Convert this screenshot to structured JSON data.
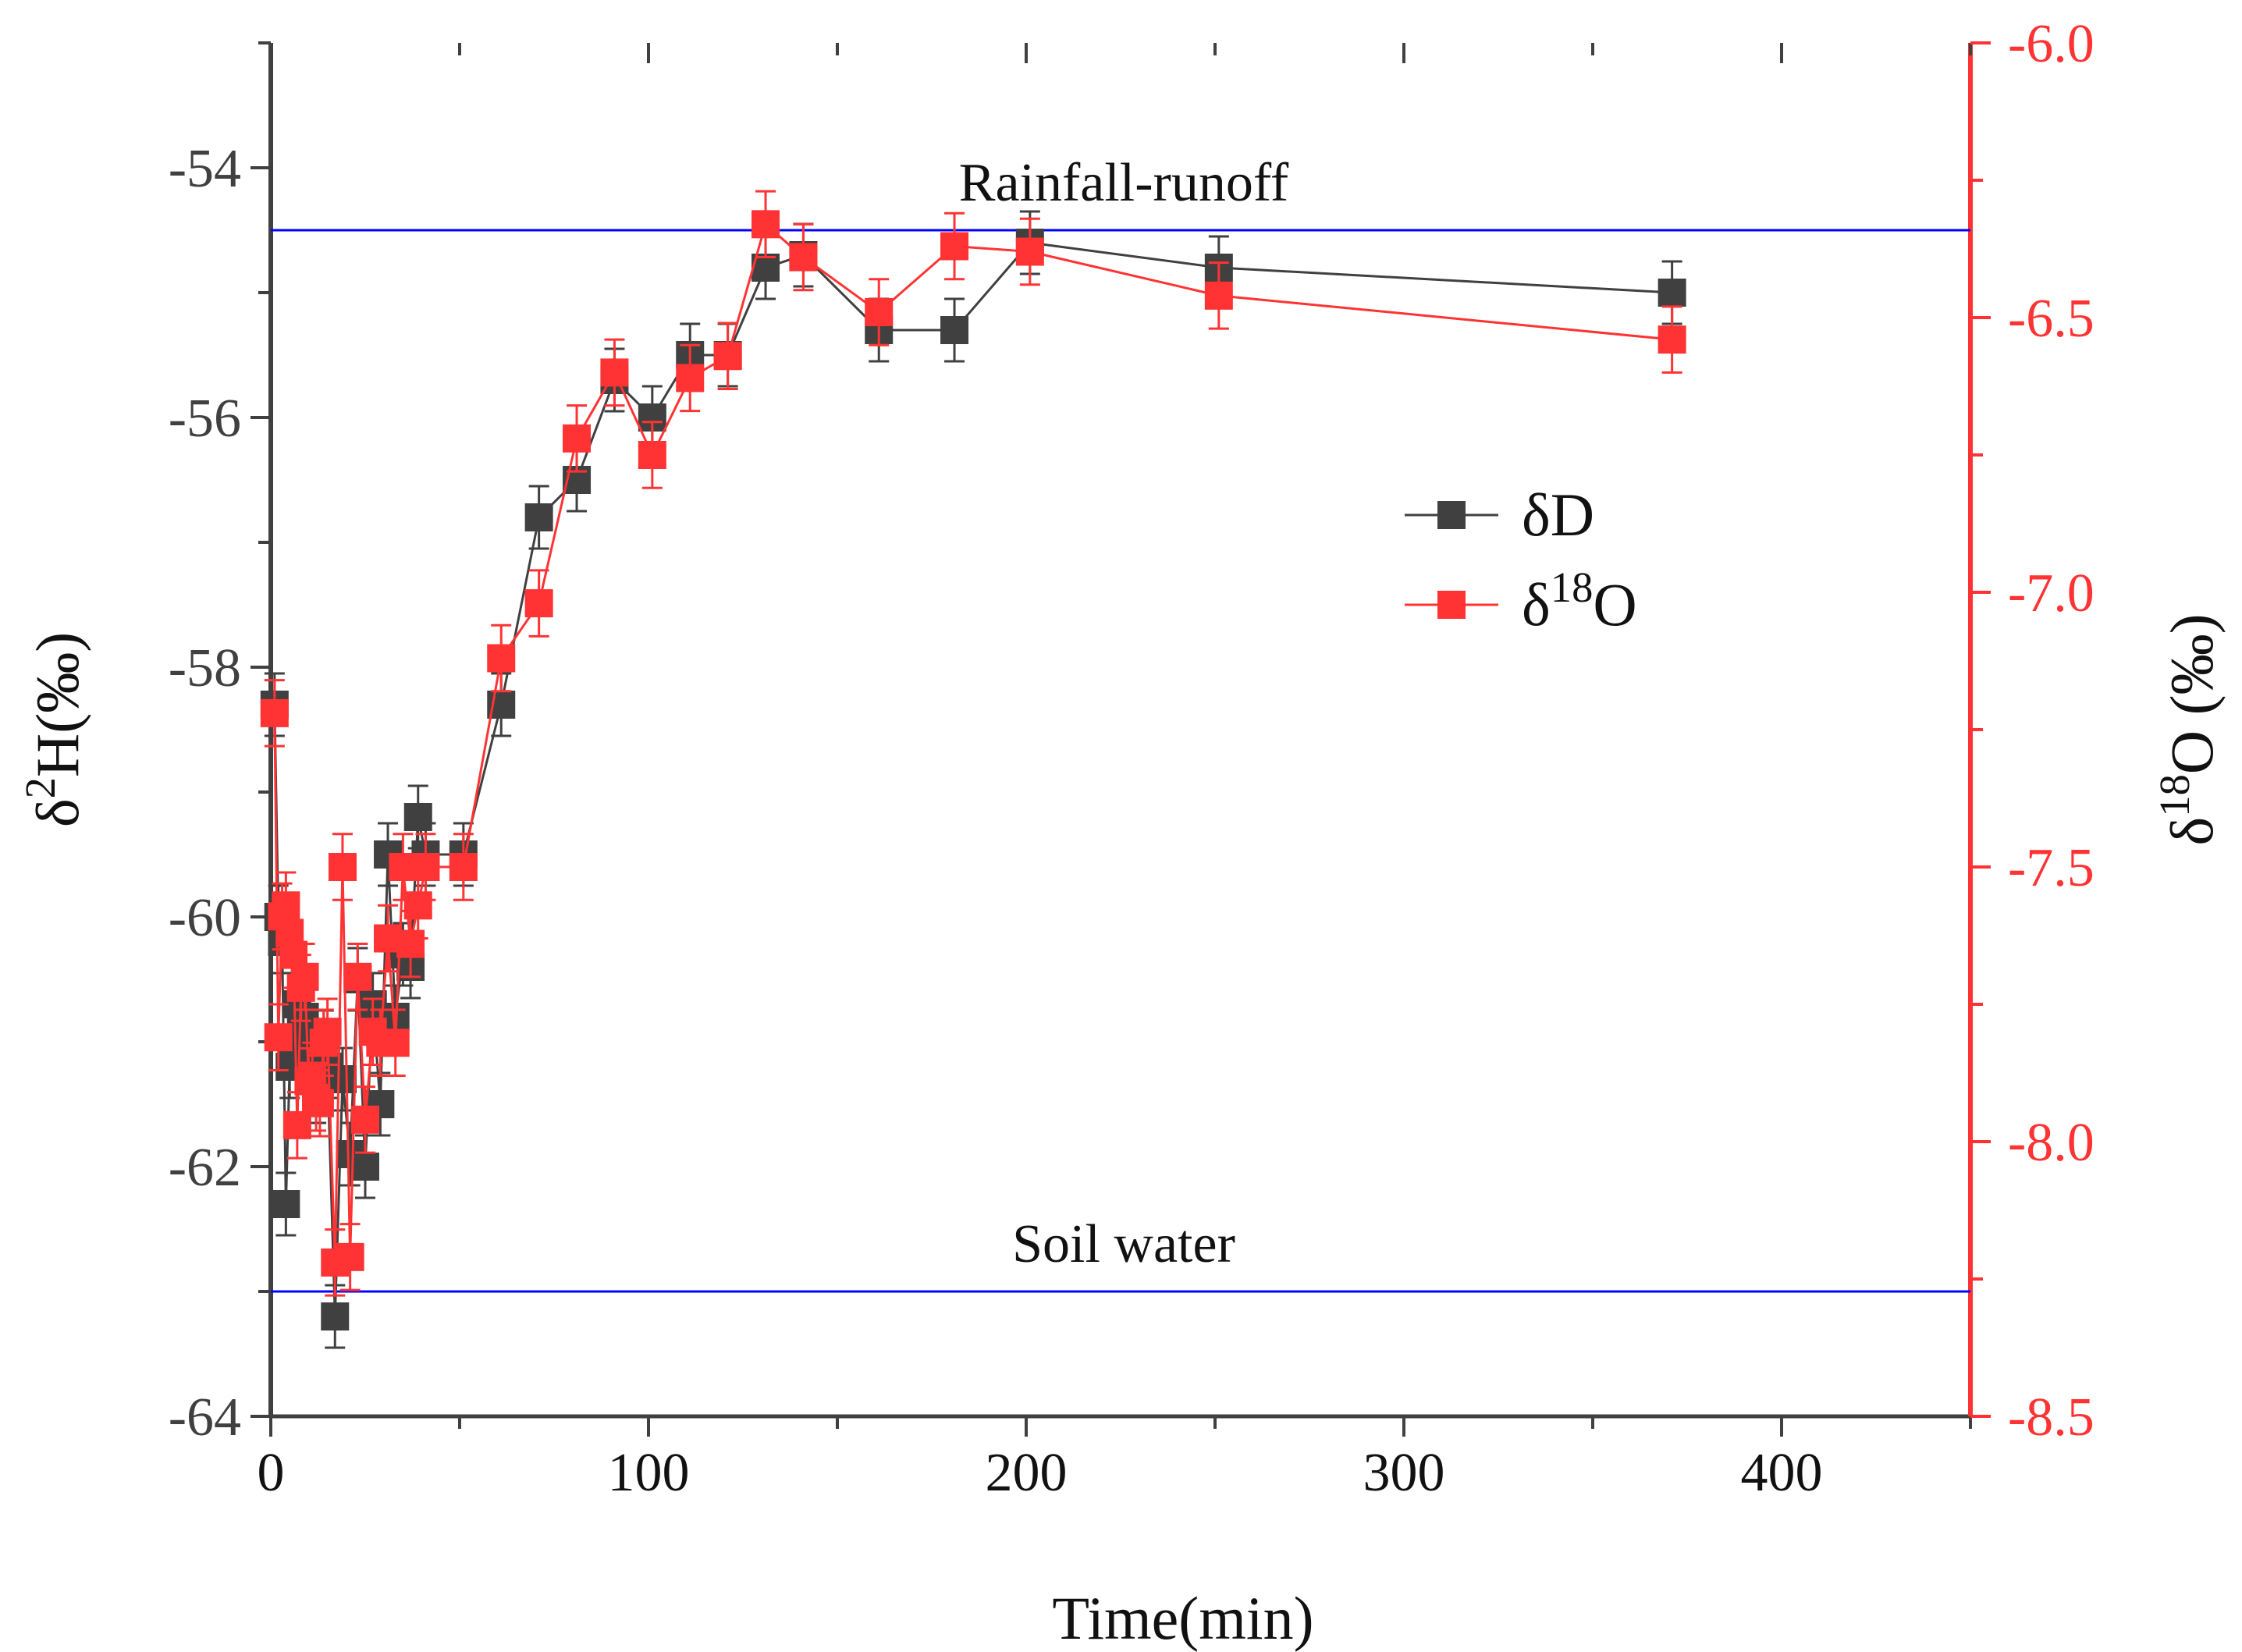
{
  "chart_data": {
    "type": "scatter",
    "title": "",
    "xlabel": "Time(min)",
    "ylabel_left": {
      "base": "δ",
      "sup": "2",
      "rest": "H(‰)"
    },
    "ylabel_right": {
      "base": "δ",
      "sup": "18",
      "rest": "O (‰)"
    },
    "xlim": [
      0,
      450
    ],
    "ylim_left": [
      -64,
      -53
    ],
    "ylim_right": [
      -8.5,
      -6.0
    ],
    "x_ticks": [
      0,
      100,
      200,
      300,
      400
    ],
    "left_ticks": [
      -64,
      -62,
      -60,
      -58,
      -56,
      -54
    ],
    "left_tick_labels": [
      "-64",
      "-62",
      "-60",
      "-58",
      "-56",
      "-54"
    ],
    "right_ticks": [
      -8.5,
      -8.0,
      -7.5,
      -7.0,
      -6.5,
      -6.0
    ],
    "right_tick_labels": [
      "-8.5",
      "-8.0",
      "-7.5",
      "-7.0",
      "-6.5",
      "-6.0"
    ],
    "reference_lines": [
      {
        "label": "Rainfall-runoff",
        "y": -54.5,
        "color": "#0000ff"
      },
      {
        "label": "Soil water",
        "y": -63.0,
        "color": "#0000ff"
      }
    ],
    "legend": {
      "position": "right-middle",
      "entries": [
        {
          "base": "δD",
          "sup": "",
          "rest": ""
        },
        {
          "base": "δ",
          "sup": "18",
          "rest": "O"
        }
      ]
    },
    "series": [
      {
        "name": "δD",
        "axis": "left",
        "color": "#404040",
        "x": [
          1,
          2,
          3,
          4,
          5,
          6,
          7,
          8,
          9,
          10,
          11,
          12,
          13,
          14,
          15,
          17,
          19,
          21,
          23,
          25,
          27,
          29,
          31,
          33,
          35,
          37,
          39,
          41,
          51,
          61,
          71,
          81,
          91,
          101,
          111,
          121,
          131,
          141,
          161,
          181,
          201,
          251,
          371
        ],
        "y": [
          -58.3,
          -60.0,
          -60.2,
          -62.3,
          -61.2,
          -61.0,
          -60.7,
          -60.9,
          -60.8,
          -61.1,
          -61.2,
          -61.4,
          -61.3,
          -61.0,
          -61.2,
          -63.2,
          -61.3,
          -61.9,
          -60.5,
          -62.0,
          -60.7,
          -61.5,
          -59.5,
          -60.8,
          -60.3,
          -60.4,
          -59.2,
          -59.5,
          -59.5,
          -58.3,
          -56.8,
          -56.5,
          -55.7,
          -56.0,
          -55.5,
          -55.5,
          -54.8,
          -54.7,
          -55.3,
          -55.3,
          -54.6,
          -54.8,
          -55.0
        ],
        "errors": 0.25
      },
      {
        "name": "δ18O",
        "axis": "right",
        "color": "#ff3333",
        "x": [
          1,
          2,
          3,
          4,
          5,
          6,
          7,
          8,
          9,
          10,
          11,
          12,
          13,
          14,
          15,
          17,
          19,
          21,
          23,
          25,
          27,
          29,
          31,
          33,
          35,
          37,
          39,
          41,
          51,
          61,
          71,
          81,
          91,
          101,
          111,
          121,
          131,
          141,
          161,
          181,
          201,
          251,
          371
        ],
        "y": [
          -7.22,
          -7.81,
          -7.59,
          -7.57,
          -7.62,
          -7.66,
          -7.97,
          -7.72,
          -7.7,
          -7.89,
          -7.88,
          -7.92,
          -7.93,
          -7.82,
          -7.8,
          -8.22,
          -7.5,
          -8.21,
          -7.7,
          -7.96,
          -7.8,
          -7.82,
          -7.63,
          -7.82,
          -7.5,
          -7.64,
          -7.57,
          -7.5,
          -7.5,
          -7.12,
          -7.02,
          -6.72,
          -6.6,
          -6.75,
          -6.61,
          -6.57,
          -6.33,
          -6.39,
          -6.49,
          -6.37,
          -6.38,
          -6.46,
          -6.54
        ],
        "errors": 0.06
      }
    ]
  }
}
